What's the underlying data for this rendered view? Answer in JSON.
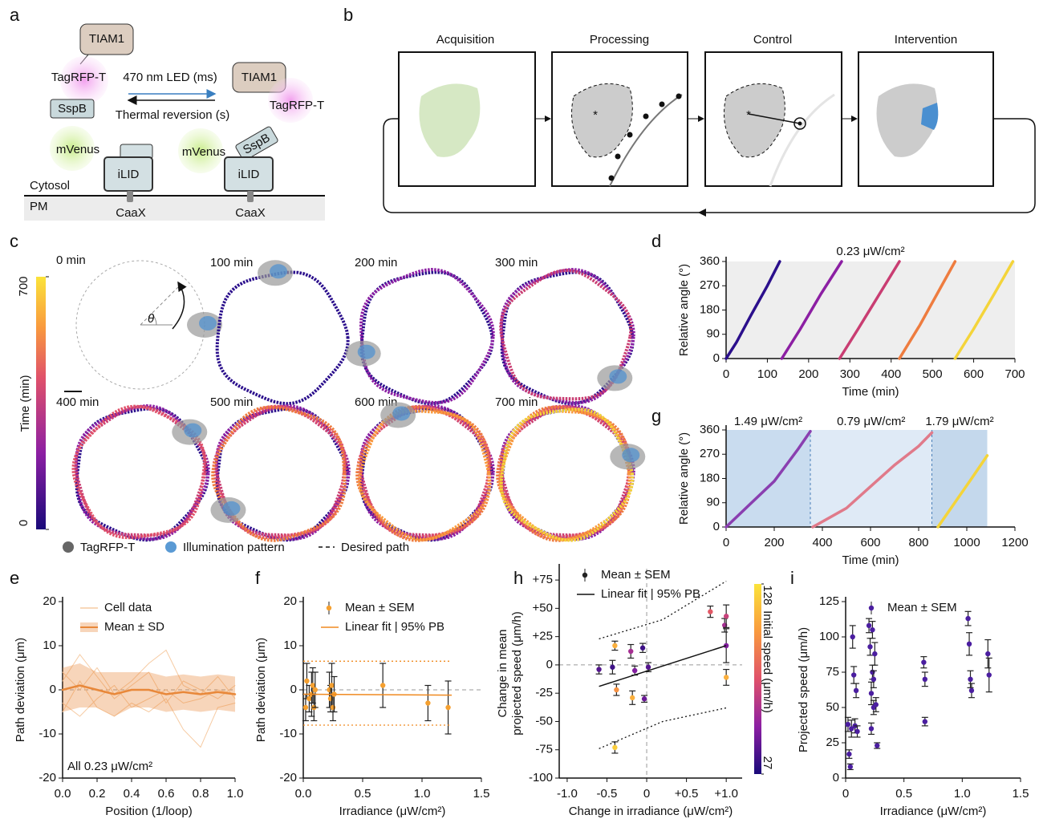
{
  "panels": [
    "a",
    "b",
    "c",
    "d",
    "e",
    "f",
    "g",
    "h",
    "i"
  ],
  "panel_a": {
    "labels": [
      "TIAM1",
      "TagRFP-T",
      "SspB",
      "470 nm LED (ms)",
      "Thermal reversion (s)",
      "TIAM1",
      "TagRFP-T",
      "SspB",
      "mVenus",
      "iLID",
      "Cytosol",
      "PM",
      "CaaX",
      "mVenus",
      "iLID",
      "CaaX"
    ]
  },
  "panel_b": {
    "steps": [
      "Acquisition",
      "Processing",
      "Control",
      "Intervention"
    ]
  },
  "panel_c": {
    "times": [
      "0 min",
      "100 min",
      "200 min",
      "300 min",
      "400 min",
      "500 min",
      "600 min",
      "700 min"
    ],
    "theta": "θ",
    "legend": [
      "TagRFP-T",
      "Illumination pattern",
      "Desired path"
    ],
    "colorbar": {
      "label": "Time (min)",
      "ticks": [
        0,
        700
      ]
    }
  },
  "chart_data": [
    {
      "type": "line",
      "title": "0.23 μW/cm²",
      "xlabel": "Time (min)",
      "ylabel": "Relative angle (°)",
      "xlim": [
        0,
        700
      ],
      "xticks": [
        0,
        100,
        200,
        300,
        400,
        500,
        600,
        700
      ],
      "ylim": [
        0,
        360
      ],
      "yticks": [
        0,
        90,
        180,
        270,
        360
      ],
      "background": "#eeeeee",
      "series": [
        {
          "color": "#2b0f8c",
          "x": [
            0,
            25,
            60,
            100,
            130
          ],
          "values": [
            0,
            60,
            160,
            270,
            360
          ]
        },
        {
          "color": "#8c1fa3",
          "x": [
            135,
            180,
            230,
            280
          ],
          "values": [
            0,
            110,
            240,
            360
          ]
        },
        {
          "color": "#c93d72",
          "x": [
            275,
            320,
            370,
            420
          ],
          "values": [
            0,
            110,
            235,
            360
          ]
        },
        {
          "color": "#ee7c3f",
          "x": [
            420,
            470,
            515,
            555
          ],
          "values": [
            0,
            125,
            250,
            360
          ]
        },
        {
          "color": "#f4d43a",
          "x": [
            555,
            600,
            650,
            695
          ],
          "values": [
            0,
            110,
            240,
            360
          ]
        }
      ]
    },
    {
      "type": "line",
      "xlabel": "Time (min)",
      "ylabel": "Relative angle (°)",
      "xlim": [
        0,
        1200
      ],
      "xticks": [
        0,
        200,
        400,
        600,
        800,
        1000,
        1200
      ],
      "ylim": [
        0,
        360
      ],
      "yticks": [
        0,
        90,
        180,
        270,
        360
      ],
      "regions": [
        {
          "start": 0,
          "end": 350,
          "label": "1.49 μW/cm²",
          "color": "#c9dcef"
        },
        {
          "start": 350,
          "end": 855,
          "label": "0.79 μW/cm²",
          "color": "#dfeaf6"
        },
        {
          "start": 855,
          "end": 1085,
          "label": "1.79 μW/cm²",
          "color": "#c4d8ec"
        }
      ],
      "series": [
        {
          "color": "#8a3fb0",
          "x": [
            0,
            100,
            200,
            300,
            350
          ],
          "values": [
            0,
            85,
            170,
            290,
            355
          ]
        },
        {
          "color": "#e07a8a",
          "x": [
            360,
            500,
            600,
            700,
            800,
            855
          ],
          "values": [
            0,
            70,
            150,
            230,
            300,
            350
          ]
        },
        {
          "color": "#f4d43a",
          "x": [
            880,
            950,
            1020,
            1085
          ],
          "values": [
            0,
            90,
            180,
            265
          ]
        }
      ]
    },
    {
      "type": "line",
      "xlabel": "Position (1/loop)",
      "ylabel": "Path deviation (μm)",
      "annotation": "All 0.23 μW/cm²",
      "zero_line": true,
      "legend": "upper left",
      "xlim": [
        0,
        1
      ],
      "xticks": [
        {
          "value": 0,
          "label": "0.0"
        },
        0.2,
        0.4,
        0.6,
        0.8,
        {
          "value": 1,
          "label": "1.0"
        }
      ],
      "ylim": [
        -20,
        20
      ],
      "yticks": [
        -20,
        -10,
        0,
        10,
        20
      ],
      "x": [
        0,
        0.1,
        0.2,
        0.3,
        0.4,
        0.5,
        0.6,
        0.7,
        0.8,
        0.9,
        1
      ],
      "series": [
        {
          "name": "Cell data",
          "color": "#f6cba3",
          "values": [
            2,
            8,
            3,
            -2,
            1,
            4,
            -3,
            2,
            0,
            -2,
            1
          ]
        },
        {
          "color": "#f6cba3",
          "values": [
            -3,
            -6,
            -2,
            1,
            -4,
            -2,
            0,
            -3,
            -2,
            0,
            -1
          ]
        },
        {
          "color": "#f6cba3",
          "values": [
            4,
            0,
            5,
            -1,
            2,
            6,
            9,
            1,
            -1,
            3,
            -2
          ]
        },
        {
          "color": "#f6cba3",
          "values": [
            -5,
            2,
            -4,
            -6,
            -3,
            -5,
            -2,
            -9,
            -13,
            -4,
            -3
          ]
        },
        {
          "name": "Mean ± SD",
          "color": "#e8883a",
          "values": [
            0,
            1,
            0,
            -1,
            0,
            0,
            -1,
            -0.5,
            -1,
            -0.5,
            -1
          ],
          "sd": [
            5,
            5,
            4,
            5,
            4,
            4,
            4,
            4,
            4,
            4,
            4
          ]
        }
      ]
    },
    {
      "type": "scatter",
      "xlabel": "Irradiance (μW/cm²)",
      "ylabel": "Path deviation (μm)",
      "zero_line": true,
      "legend": "upper left",
      "xlim": [
        0,
        1.5
      ],
      "xticks": [
        {
          "value": 0,
          "label": "0.0"
        },
        0.5,
        {
          "value": 1,
          "label": "1.0"
        },
        1.5
      ],
      "ylim": [
        -20,
        20
      ],
      "yticks": [
        -20,
        -10,
        0,
        10,
        20
      ],
      "series": [
        {
          "name": "Mean ± SEM",
          "color": "#f5a030",
          "x": [
            0.02,
            0.03,
            0.05,
            0.07,
            0.08,
            0.09,
            0.1,
            0.22,
            0.23,
            0.24,
            0.25,
            0.26,
            0.67,
            1.05,
            1.22
          ],
          "values": [
            -4,
            2,
            -2,
            -1,
            1,
            -4,
            0,
            0,
            -2,
            1,
            -4,
            -1,
            1,
            -3,
            -4
          ],
          "err": [
            3,
            4,
            3,
            5,
            4,
            3,
            4,
            4,
            3,
            5,
            3,
            4,
            5,
            4,
            6
          ]
        },
        {
          "name": "Linear fit | 95% PB",
          "color": "#f08a20",
          "x": [
            0,
            1.25
          ],
          "values": [
            -1,
            -1.2
          ],
          "pb_upper": [
            6.5,
            6.5
          ],
          "pb_lower": [
            -8,
            -8
          ]
        }
      ]
    },
    {
      "type": "scatter",
      "xlabel": "Change in irradiance (μW/cm²)",
      "ylabel": [
        "Change in mean",
        "projected speed (μm/h)"
      ],
      "zero_line": true,
      "zero_xline": true,
      "legend": "upper left",
      "xlim": [
        -1.1,
        1.2
      ],
      "xticks": [
        {
          "value": -1,
          "label": "-1.0"
        },
        -0.5,
        0,
        {
          "value": 0.5,
          "label": "+0.5"
        },
        {
          "value": 1,
          "label": "+1.0"
        }
      ],
      "ylim": [
        -100,
        85
      ],
      "yticks": [
        -100,
        -75,
        -50,
        -25,
        0,
        {
          "value": 25,
          "label": "+25"
        },
        {
          "value": 50,
          "label": "+50"
        },
        {
          "value": 75,
          "label": "+75"
        }
      ],
      "colorbar": {
        "label": "Initial speed (μm/h)",
        "clim": [
          27,
          128
        ],
        "ticks": [
          27,
          128
        ],
        "colors": [
          "#1a0a7a",
          "#8c1fa3",
          "#e0516a",
          "#f99a3e",
          "#fbe33a"
        ]
      },
      "series": [
        {
          "name": "Mean ± SEM",
          "color": "#222222",
          "x": [
            -0.6,
            -0.43,
            -0.4,
            -0.38,
            -0.4,
            -0.2,
            -0.18,
            -0.15,
            -0.05,
            -0.03,
            0.02,
            0.8,
            0.98,
            1.0,
            1.0,
            1.0
          ],
          "values": [
            -4,
            -2,
            17,
            -22,
            -73,
            12,
            -29,
            -5,
            15,
            -30,
            -2,
            47,
            35,
            43,
            17,
            -11
          ],
          "err": [
            4,
            6,
            4,
            5,
            5,
            6,
            6,
            4,
            4,
            3,
            4,
            5,
            6,
            10,
            15,
            7
          ],
          "c": [
            40,
            35,
            110,
            100,
            120,
            60,
            110,
            50,
            35,
            45,
            40,
            80,
            60,
            70,
            50,
            110
          ]
        },
        {
          "name": "Linear fit | 95% PB",
          "color": "#111111",
          "x": [
            -0.6,
            0.2,
            1.0
          ],
          "values": [
            -19,
            -1,
            17
          ],
          "pb_upper": [
            23,
            40,
            74
          ],
          "pb_lower": [
            -74,
            -50,
            -38
          ]
        }
      ]
    },
    {
      "type": "scatter",
      "xlabel": "Irradiance (μW/cm²)",
      "ylabel": "Projected speed (μm/h)",
      "legend": "upper left",
      "xlim": [
        0,
        1.5
      ],
      "xticks": [
        0,
        0.5,
        {
          "value": 1,
          "label": "1.0"
        },
        1.5
      ],
      "ylim": [
        0,
        125
      ],
      "yticks": [
        0,
        25,
        50,
        75,
        100,
        125
      ],
      "series": [
        {
          "name": "Mean ± SEM",
          "color": "#4b1ea0",
          "x": [
            0.02,
            0.03,
            0.04,
            0.05,
            0.06,
            0.07,
            0.08,
            0.09,
            0.1,
            0.2,
            0.21,
            0.22,
            0.22,
            0.23,
            0.23,
            0.24,
            0.24,
            0.25,
            0.26,
            0.27,
            0.67,
            0.68,
            0.68,
            1.05,
            1.06,
            1.07,
            1.08,
            1.22,
            1.23
          ],
          "values": [
            38,
            17,
            8,
            35,
            100,
            73,
            37,
            62,
            33,
            108,
            93,
            35,
            60,
            105,
            75,
            70,
            50,
            88,
            52,
            23,
            82,
            70,
            40,
            113,
            95,
            70,
            62,
            88,
            73
          ],
          "err": [
            5,
            3,
            2,
            6,
            8,
            6,
            5,
            5,
            4,
            5,
            6,
            4,
            8,
            6,
            5,
            6,
            5,
            8,
            5,
            2,
            4,
            5,
            3,
            5,
            8,
            6,
            5,
            10,
            12
          ]
        }
      ]
    }
  ]
}
